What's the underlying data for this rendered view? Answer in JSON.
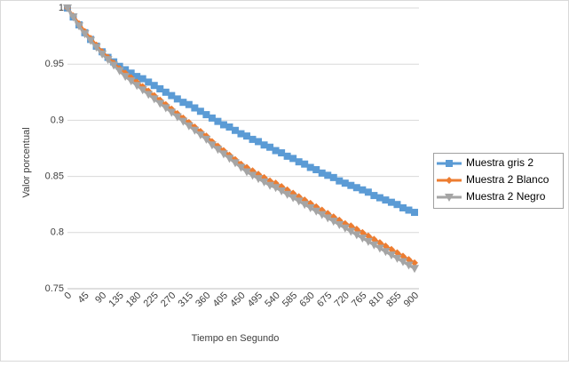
{
  "chart_data": {
    "type": "line",
    "x_label": "Tiempo en Segundo",
    "y_label": "Valor porcentual",
    "categories": [
      0,
      null,
      null,
      45,
      null,
      null,
      90,
      null,
      null,
      135,
      null,
      null,
      180,
      null,
      null,
      225,
      null,
      null,
      270,
      null,
      null,
      315,
      null,
      null,
      360,
      null,
      null,
      405,
      null,
      null,
      450,
      null,
      null,
      495,
      null,
      null,
      540,
      null,
      null,
      585,
      null,
      null,
      630,
      null,
      null,
      675,
      null,
      null,
      720,
      null,
      null,
      765,
      null,
      null,
      810,
      null,
      null,
      855,
      null,
      null,
      900
    ],
    "series": [
      {
        "name": "Muestra gris 2",
        "color": "#5b9bd5",
        "marker": "square",
        "values": [
          1.0,
          0.992,
          0.985,
          0.978,
          0.972,
          0.966,
          0.961,
          0.956,
          0.952,
          0.948,
          0.945,
          0.942,
          0.939,
          0.937,
          0.934,
          0.931,
          0.928,
          0.925,
          0.922,
          0.919,
          0.916,
          0.914,
          0.911,
          0.908,
          0.905,
          0.902,
          0.899,
          0.896,
          0.894,
          0.891,
          0.888,
          0.886,
          0.883,
          0.881,
          0.878,
          0.876,
          0.873,
          0.871,
          0.868,
          0.866,
          0.863,
          0.861,
          0.858,
          0.856,
          0.853,
          0.851,
          0.849,
          0.846,
          0.844,
          0.842,
          0.84,
          0.838,
          0.836,
          0.833,
          0.831,
          0.829,
          0.827,
          0.825,
          0.822,
          0.82,
          0.818
        ]
      },
      {
        "name": "Muestra 2 Blanco",
        "color": "#ed7d31",
        "marker": "diamond",
        "values": [
          1.0,
          0.993,
          0.986,
          0.979,
          0.973,
          0.967,
          0.961,
          0.956,
          0.951,
          0.946,
          0.942,
          0.938,
          0.934,
          0.93,
          0.926,
          0.922,
          0.918,
          0.914,
          0.91,
          0.906,
          0.902,
          0.898,
          0.894,
          0.89,
          0.886,
          0.881,
          0.877,
          0.873,
          0.869,
          0.865,
          0.861,
          0.858,
          0.855,
          0.852,
          0.849,
          0.846,
          0.844,
          0.841,
          0.838,
          0.835,
          0.832,
          0.829,
          0.826,
          0.823,
          0.82,
          0.817,
          0.814,
          0.811,
          0.808,
          0.806,
          0.803,
          0.8,
          0.797,
          0.794,
          0.791,
          0.788,
          0.785,
          0.782,
          0.779,
          0.776,
          0.773
        ]
      },
      {
        "name": "Muestra 2 Negro",
        "color": "#a5a5a5",
        "marker": "triangle-down",
        "values": [
          1.0,
          0.992,
          0.984,
          0.977,
          0.971,
          0.965,
          0.959,
          0.954,
          0.949,
          0.944,
          0.939,
          0.935,
          0.931,
          0.927,
          0.923,
          0.919,
          0.915,
          0.911,
          0.907,
          0.903,
          0.899,
          0.895,
          0.891,
          0.887,
          0.883,
          0.878,
          0.874,
          0.87,
          0.866,
          0.862,
          0.858,
          0.854,
          0.851,
          0.848,
          0.845,
          0.842,
          0.84,
          0.837,
          0.834,
          0.831,
          0.828,
          0.825,
          0.822,
          0.819,
          0.816,
          0.813,
          0.81,
          0.807,
          0.804,
          0.801,
          0.798,
          0.795,
          0.792,
          0.789,
          0.786,
          0.783,
          0.78,
          0.777,
          0.774,
          0.771,
          0.768
        ]
      }
    ],
    "ylim": [
      0.75,
      1
    ],
    "yticks": [
      0.75,
      0.8,
      0.85,
      0.9,
      0.95,
      1
    ],
    "grid": true,
    "legend": "right"
  }
}
